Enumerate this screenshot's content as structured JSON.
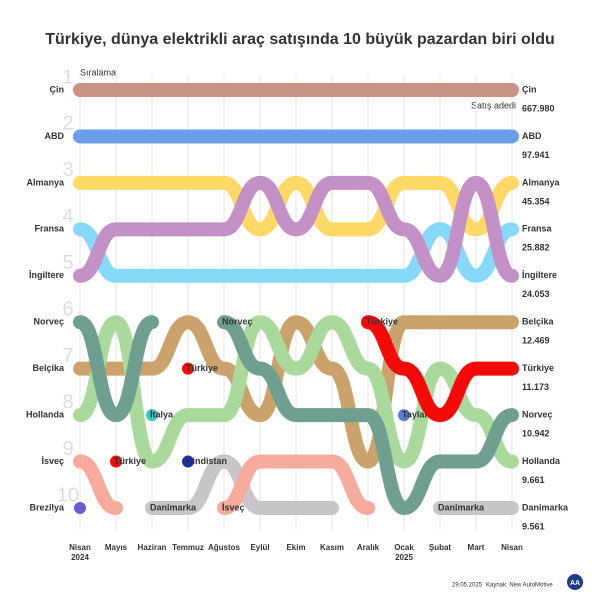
{
  "chart_data": {
    "type": "bump",
    "title": "Türkiye, dünya elektrikli araç satışında 10 büyük pazardan biri oldu",
    "y_label": "Sıralama",
    "y2_label": "Satış adedi",
    "categories": [
      "Nisan 2024",
      "Mayıs",
      "Haziran",
      "Temmuz",
      "Ağustos",
      "Eylül",
      "Ekim",
      "Kasım",
      "Aralık",
      "Ocak 2025",
      "Şubat",
      "Mart",
      "Nisan"
    ],
    "ylim": [
      1,
      10
    ],
    "yticks": [
      1,
      2,
      3,
      4,
      5,
      6,
      7,
      8,
      9,
      10
    ],
    "series": [
      {
        "name": "Çin",
        "color": "#c99385",
        "values": [
          1,
          1,
          1,
          1,
          1,
          1,
          1,
          1,
          1,
          1,
          1,
          1,
          1
        ],
        "sales": 667980,
        "sales_label": "667.980"
      },
      {
        "name": "ABD",
        "color": "#6a9ee8",
        "values": [
          2,
          2,
          2,
          2,
          2,
          2,
          2,
          2,
          2,
          2,
          2,
          2,
          2
        ],
        "sales": 97941,
        "sales_label": "97.941"
      },
      {
        "name": "Almanya",
        "color": "#ffd966",
        "values": [
          3,
          3,
          3,
          3,
          3,
          4,
          3,
          4,
          4,
          3,
          3,
          4,
          3
        ],
        "sales": 45354,
        "sales_label": "45.354"
      },
      {
        "name": "Fransa",
        "color": "#86d9f8",
        "values": [
          4,
          5,
          5,
          5,
          5,
          5,
          5,
          5,
          5,
          5,
          4,
          5,
          4
        ],
        "sales": 25882,
        "sales_label": "25.882"
      },
      {
        "name": "İngiltere",
        "color": "#c391c6",
        "values": [
          5,
          4,
          4,
          4,
          4,
          3,
          4,
          3,
          3,
          4,
          5,
          3,
          5
        ],
        "sales": 24053,
        "sales_label": "24.053"
      },
      {
        "name": "Belçika",
        "color": "#cba26c",
        "values": [
          7,
          7,
          7,
          6,
          7,
          8,
          6,
          7,
          9,
          6,
          6,
          6,
          6
        ],
        "sales": 12469,
        "sales_label": "12.469"
      },
      {
        "name": "Hollanda",
        "color": "#aad99c",
        "values": [
          8,
          6,
          9,
          8,
          8,
          6,
          7,
          6,
          7,
          9,
          7,
          8,
          9
        ],
        "sales": 9661,
        "sales_label": "9.661"
      },
      {
        "name": "Norveç",
        "color": "#6e9f90",
        "values": [
          6,
          8,
          6,
          null,
          6,
          7,
          8,
          8,
          8,
          10,
          9,
          9,
          8
        ],
        "sales": 10942,
        "sales_label": "10.942"
      },
      {
        "name": "Danimarka",
        "color": "#c9c6ca",
        "values": [
          null,
          null,
          10,
          10,
          9,
          10,
          10,
          10,
          null,
          null,
          10,
          10,
          10
        ],
        "sales": 9561,
        "sales_label": "9.561"
      },
      {
        "name": "İsveç",
        "color": "#f6ab9c",
        "values": [
          9,
          10,
          null,
          null,
          10,
          9,
          9,
          9,
          10,
          null,
          null,
          null,
          null
        ]
      },
      {
        "name": "Brezilya",
        "color": "#6d5ad6",
        "values": [
          10,
          null,
          null,
          null,
          null,
          null,
          null,
          null,
          null,
          null,
          null,
          null,
          null
        ]
      },
      {
        "name": "İtalya",
        "color": "#3ec9c0",
        "values": [
          null,
          null,
          8,
          null,
          null,
          null,
          null,
          null,
          null,
          null,
          null,
          null,
          null
        ]
      },
      {
        "name": "Hindistan",
        "color": "#1f2fa8",
        "values": [
          null,
          null,
          null,
          9,
          null,
          null,
          null,
          null,
          null,
          null,
          null,
          null,
          null
        ]
      },
      {
        "name": "Tayland",
        "color": "#5a7fd6",
        "values": [
          null,
          null,
          null,
          null,
          null,
          null,
          null,
          null,
          null,
          8,
          null,
          null,
          null
        ]
      },
      {
        "name": "Türkiye",
        "color": "#f50a0a",
        "values": [
          null,
          9,
          null,
          7,
          null,
          null,
          null,
          null,
          6,
          7,
          8,
          7,
          7
        ],
        "sales": 11173,
        "sales_label": "11.173"
      }
    ]
  },
  "footer": {
    "date": "29.05.2025",
    "source": "Kaynak: New AutoMotive",
    "logo": "AA"
  }
}
